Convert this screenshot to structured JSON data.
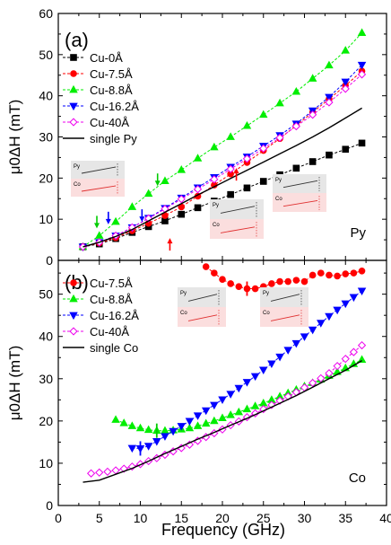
{
  "figure": {
    "xlabel": "Frequency (GHz)"
  },
  "chart_data": [
    {
      "type": "line",
      "panel_label": "(a)",
      "corner_label": "Py",
      "ylabel": "μ0ΔH (mT)",
      "xlim": [
        0,
        40
      ],
      "ylim": [
        0,
        60
      ],
      "xticks": [
        0,
        5,
        10,
        15,
        20,
        25,
        30,
        35,
        40
      ],
      "yticks": [
        0,
        10,
        20,
        30,
        40,
        50,
        60
      ],
      "legend_position": "top-left",
      "series": [
        {
          "name": "Cu-0Å",
          "color": "#000000",
          "marker": "square",
          "filled": true,
          "x": [
            3,
            5,
            7,
            9,
            11,
            13,
            15,
            17,
            19,
            21,
            23,
            25,
            27,
            29,
            31,
            33,
            35,
            37
          ],
          "y": [
            3.3,
            4.0,
            5.3,
            6.8,
            8.2,
            9.6,
            11.2,
            12.8,
            14.4,
            16.0,
            17.6,
            19.2,
            20.8,
            22.4,
            24.0,
            25.6,
            27.0,
            28.5
          ]
        },
        {
          "name": "Cu-7.5Å",
          "color": "#ff0000",
          "marker": "circle",
          "filled": true,
          "x": [
            3,
            5,
            7,
            9,
            11,
            13,
            15,
            17,
            19,
            21,
            23,
            25,
            27,
            29,
            31,
            33,
            35,
            37
          ],
          "y": [
            3.3,
            4.2,
            5.5,
            7.2,
            9.0,
            10.9,
            13.0,
            15.6,
            18.3,
            21.0,
            23.8,
            26.7,
            29.6,
            32.8,
            36.0,
            39.2,
            42.5,
            46.0
          ]
        },
        {
          "name": "Cu-8.8Å",
          "color": "#00ee00",
          "marker": "triangle-up",
          "filled": true,
          "x": [
            3,
            5,
            7,
            9,
            11,
            13,
            15,
            17,
            19,
            21,
            23,
            25,
            27,
            29,
            31,
            33,
            35,
            37
          ],
          "y": [
            3.3,
            6.0,
            9.4,
            13.0,
            16.2,
            19.3,
            22.0,
            24.8,
            27.5,
            30.0,
            32.7,
            35.4,
            38.2,
            41.0,
            44.2,
            47.4,
            51.0,
            55.3
          ]
        },
        {
          "name": "Cu-16.2Å",
          "color": "#0000ff",
          "marker": "triangle-down",
          "filled": true,
          "x": [
            3,
            5,
            7,
            9,
            11,
            13,
            15,
            17,
            19,
            21,
            23,
            25,
            27,
            29,
            31,
            33,
            35,
            37
          ],
          "y": [
            3.3,
            4.4,
            6.0,
            8.0,
            10.3,
            12.7,
            15.2,
            17.7,
            20.2,
            22.7,
            25.2,
            27.8,
            30.4,
            33.2,
            36.4,
            39.7,
            43.4,
            47.5
          ]
        },
        {
          "name": "Cu-40Å",
          "color": "#ee00ee",
          "marker": "diamond",
          "filled": false,
          "x": [
            3,
            5,
            7,
            9,
            11,
            13,
            15,
            17,
            19,
            21,
            23,
            25,
            27,
            29,
            31,
            33,
            35,
            37
          ],
          "y": [
            3.3,
            4.4,
            6.0,
            8.0,
            10.2,
            12.5,
            14.9,
            17.3,
            19.7,
            22.2,
            24.7,
            27.2,
            29.8,
            32.6,
            35.4,
            38.4,
            41.7,
            45.2
          ]
        },
        {
          "name": "single Py",
          "color": "#000000",
          "marker": "none",
          "filled": false,
          "x": [
            3,
            5,
            7,
            9,
            11,
            13,
            15,
            17,
            19,
            21,
            23,
            25,
            27,
            29,
            31,
            33,
            35,
            37
          ],
          "y": [
            3.3,
            4.4,
            5.8,
            7.5,
            9.6,
            11.7,
            13.8,
            15.9,
            17.9,
            19.9,
            21.9,
            23.9,
            25.9,
            27.9,
            30.0,
            32.2,
            34.6,
            37.0
          ]
        }
      ],
      "arrows": [
        {
          "color": "#00cc00",
          "x": 4.7,
          "y": 8.2,
          "direction": "down"
        },
        {
          "color": "#0000ff",
          "x": 6.1,
          "y": 9.2,
          "direction": "down"
        },
        {
          "color": "#0000ff",
          "x": 10.2,
          "y": 9.8,
          "direction": "down"
        },
        {
          "color": "#00cc00",
          "x": 12.1,
          "y": 18.5,
          "direction": "down"
        },
        {
          "color": "#ff0000",
          "x": 13.6,
          "y": 5.0,
          "direction": "up"
        },
        {
          "color": "#ff0000",
          "x": 21.7,
          "y": 22.0,
          "direction": "up"
        }
      ]
    },
    {
      "type": "line",
      "panel_label": "(b)",
      "corner_label": "Co",
      "ylabel": "μ0ΔH (mT)",
      "xlim": [
        0,
        40
      ],
      "ylim": [
        0,
        58
      ],
      "xticks": [
        0,
        5,
        10,
        15,
        20,
        25,
        30,
        35,
        40
      ],
      "yticks": [
        0,
        10,
        20,
        30,
        40,
        50
      ],
      "legend_position": "top-left",
      "series": [
        {
          "name": "Cu-7.5Å",
          "color": "#ff0000",
          "marker": "circle",
          "filled": true,
          "x": [
            18,
            19,
            20,
            21,
            22,
            23,
            24,
            25,
            26,
            27,
            28,
            29,
            30,
            31,
            32,
            33,
            34,
            35,
            36,
            37
          ],
          "y": [
            56.5,
            55.0,
            53.5,
            52.5,
            51.8,
            51.3,
            51.3,
            51.8,
            52.5,
            53.0,
            53.0,
            53.3,
            53.0,
            54.5,
            55.0,
            54.5,
            54.3,
            54.8,
            55.0,
            55.5
          ]
        },
        {
          "name": "Cu-8.8Å",
          "color": "#00ee00",
          "marker": "triangle-up",
          "filled": true,
          "x": [
            7,
            8,
            9,
            10,
            11,
            12,
            13,
            14,
            15,
            16,
            17,
            18,
            19,
            20,
            21,
            22,
            23,
            24,
            25,
            26,
            27,
            28,
            29,
            30,
            31,
            32,
            33,
            34,
            35,
            36,
            37
          ],
          "y": [
            20.3,
            19.5,
            18.8,
            18.3,
            17.9,
            17.7,
            17.7,
            17.8,
            18.0,
            18.3,
            18.8,
            19.4,
            20.0,
            20.7,
            21.4,
            22.1,
            22.8,
            23.5,
            24.2,
            25.0,
            25.8,
            26.6,
            27.4,
            28.2,
            29.0,
            29.8,
            30.7,
            31.6,
            32.5,
            33.5,
            34.5
          ]
        },
        {
          "name": "Cu-16.2Å",
          "color": "#0000ff",
          "marker": "triangle-down",
          "filled": true,
          "x": [
            9,
            10,
            11,
            12,
            13,
            14,
            15,
            16,
            17,
            18,
            19,
            20,
            21,
            22,
            23,
            24,
            25,
            26,
            27,
            28,
            29,
            30,
            31,
            32,
            33,
            34,
            35,
            36,
            37
          ],
          "y": [
            13.6,
            13.5,
            14.1,
            15.2,
            16.4,
            17.6,
            18.8,
            20.0,
            21.3,
            22.5,
            23.8,
            25.1,
            26.4,
            27.8,
            29.2,
            30.6,
            32.1,
            33.6,
            35.2,
            36.8,
            38.4,
            40.0,
            41.6,
            43.2,
            44.8,
            46.3,
            47.8,
            49.3,
            50.8
          ]
        },
        {
          "name": "Cu-40Å",
          "color": "#ee00ee",
          "marker": "diamond",
          "filled": false,
          "x": [
            4,
            5,
            6,
            7,
            8,
            9,
            10,
            11,
            12,
            13,
            14,
            15,
            16,
            17,
            18,
            19,
            20,
            21,
            22,
            23,
            24,
            25,
            26,
            27,
            28,
            29,
            30,
            31,
            32,
            33,
            34,
            35,
            36,
            37
          ],
          "y": [
            7.6,
            7.8,
            8.0,
            8.3,
            8.7,
            9.2,
            9.8,
            10.5,
            11.2,
            12.0,
            12.8,
            13.6,
            14.4,
            15.3,
            16.2,
            17.1,
            18.0,
            19.0,
            19.9,
            20.9,
            21.8,
            22.8,
            23.8,
            24.8,
            25.8,
            26.8,
            27.9,
            29.0,
            30.1,
            31.3,
            33.0,
            34.7,
            36.3,
            37.9
          ]
        },
        {
          "name": "single Co",
          "color": "#000000",
          "marker": "none",
          "filled": false,
          "x": [
            3,
            5,
            7,
            9,
            11,
            13,
            15,
            17,
            19,
            21,
            23,
            25,
            27,
            29,
            31,
            33,
            35,
            37
          ],
          "y": [
            5.5,
            6.0,
            7.4,
            8.8,
            10.5,
            12.3,
            14.0,
            15.7,
            17.3,
            19.0,
            20.6,
            22.4,
            24.2,
            26.0,
            28.0,
            30.0,
            32.0,
            34.3
          ]
        }
      ],
      "arrows": [
        {
          "color": "#0000ff",
          "x": 10,
          "y": 13.5,
          "direction": "vertical"
        },
        {
          "color": "#00cc00",
          "x": 12,
          "y": 17.7,
          "direction": "vertical"
        },
        {
          "color": "#ff0000",
          "x": 23,
          "y": 51.3,
          "direction": "vertical"
        }
      ]
    }
  ],
  "insets": [
    {
      "top_label": "Py",
      "bottom_label": "Co"
    },
    {
      "top_label": "Py",
      "bottom_label": "Co"
    },
    {
      "top_label": "Py",
      "bottom_label": "Co"
    },
    {
      "top_label": "Py",
      "bottom_label": "Co"
    }
  ]
}
